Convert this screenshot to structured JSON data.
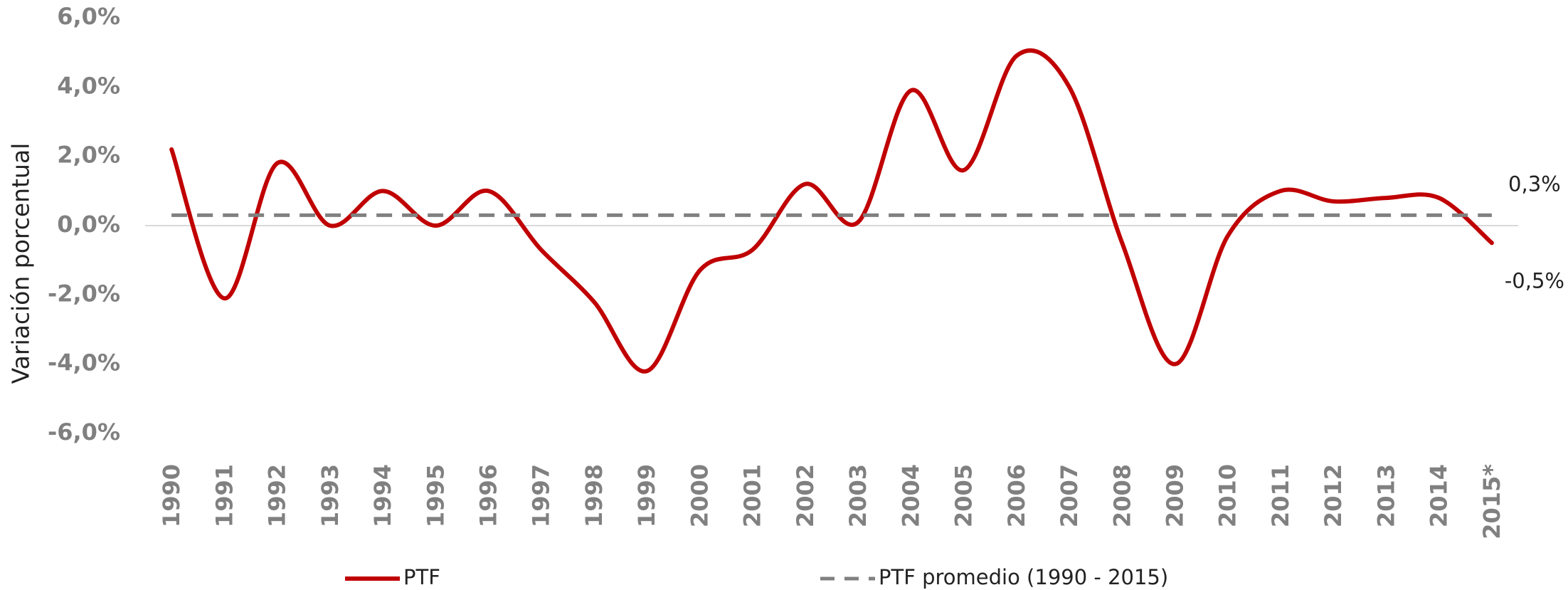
{
  "chart_data": {
    "type": "line",
    "y_label": "Variación porcentual",
    "categories": [
      "1990",
      "1991",
      "1992",
      "1993",
      "1994",
      "1995",
      "1996",
      "1997",
      "1998",
      "1999",
      "2000",
      "2001",
      "2002",
      "2003",
      "2004",
      "2005",
      "2006",
      "2007",
      "2008",
      "2009",
      "2010",
      "2011",
      "2012",
      "2013",
      "2014",
      "2015*"
    ],
    "series": [
      {
        "name": "PTF",
        "color": "#c00000",
        "dash": false,
        "values": [
          2.2,
          -2.1,
          1.8,
          0.0,
          1.0,
          0.0,
          1.0,
          -0.7,
          -2.2,
          -4.2,
          -1.3,
          -0.7,
          1.2,
          0.1,
          3.9,
          1.6,
          4.9,
          4.0,
          -0.5,
          -4.0,
          -0.3,
          1.0,
          0.7,
          0.8,
          0.8,
          -0.5
        ],
        "value_labels": [
          null,
          null,
          null,
          null,
          null,
          null,
          null,
          null,
          null,
          null,
          null,
          null,
          null,
          null,
          null,
          null,
          null,
          null,
          null,
          null,
          null,
          null,
          null,
          null,
          null,
          "-0,5%"
        ]
      },
      {
        "name": "PTF promedio (1990 - 2015)",
        "color": "#808080",
        "dash": true,
        "values": [
          0.3,
          0.3,
          0.3,
          0.3,
          0.3,
          0.3,
          0.3,
          0.3,
          0.3,
          0.3,
          0.3,
          0.3,
          0.3,
          0.3,
          0.3,
          0.3,
          0.3,
          0.3,
          0.3,
          0.3,
          0.3,
          0.3,
          0.3,
          0.3,
          0.3,
          0.3
        ],
        "value_labels": [
          null,
          null,
          null,
          null,
          null,
          null,
          null,
          null,
          null,
          null,
          null,
          null,
          null,
          null,
          null,
          null,
          null,
          null,
          null,
          null,
          null,
          null,
          null,
          null,
          null,
          "0,3%"
        ]
      }
    ],
    "ylim": [
      -6,
      6
    ],
    "yticks": [
      {
        "value": -6,
        "label": "-6,0%"
      },
      {
        "value": -4,
        "label": "-4,0%"
      },
      {
        "value": -2,
        "label": "-2,0%"
      },
      {
        "value": 0,
        "label": "0,0%"
      },
      {
        "value": 2,
        "label": "2,0%"
      },
      {
        "value": 4,
        "label": "4,0%"
      },
      {
        "value": 6,
        "label": "6,0%"
      }
    ],
    "zero_line": true,
    "legend": "bottom"
  }
}
